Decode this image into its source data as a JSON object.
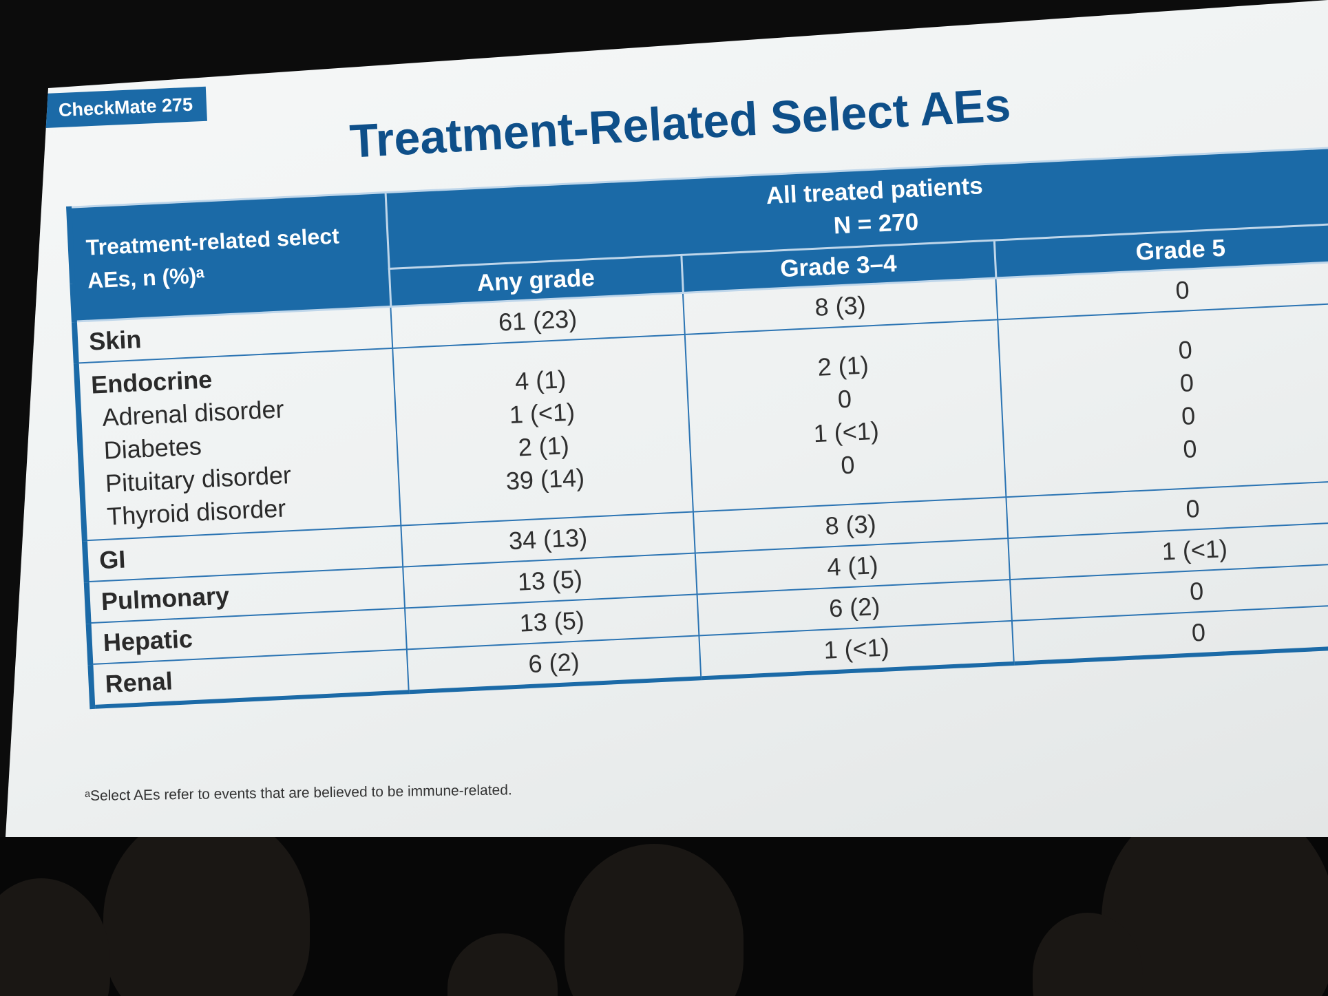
{
  "badge": "CheckMate 275",
  "title": "Treatment-Related Select AEs",
  "table": {
    "corner_header_line1": "Treatment-related select",
    "corner_header_line2": "AEs, n (%)ᵃ",
    "group_header_line1": "All treated patients",
    "group_header_line2": "N = 270",
    "columns": [
      "Any grade",
      "Grade 3–4",
      "Grade 5"
    ],
    "rows": {
      "skin": {
        "label": "Skin",
        "any": "61 (23)",
        "g34": "8 (3)",
        "g5": "0"
      },
      "endocrine": {
        "label": "Endocrine",
        "subs": [
          "Adrenal disorder",
          "Diabetes",
          "Pituitary disorder",
          "Thyroid disorder"
        ],
        "any": [
          "4 (1)",
          "1 (<1)",
          "2 (1)",
          "39 (14)"
        ],
        "g34": [
          "2 (1)",
          "0",
          "1 (<1)",
          "0"
        ],
        "g5": [
          "0",
          "0",
          "0",
          "0"
        ]
      },
      "gi": {
        "label": "GI",
        "any": "34 (13)",
        "g34": "8 (3)",
        "g5": "0"
      },
      "pulmonary": {
        "label": "Pulmonary",
        "any": "13 (5)",
        "g34": "4 (1)",
        "g5": "1 (<1)"
      },
      "hepatic": {
        "label": "Hepatic",
        "any": "13 (5)",
        "g34": "6 (2)",
        "g5": "0"
      },
      "renal": {
        "label": "Renal",
        "any": "6 (2)",
        "g34": "1 (<1)",
        "g5": "0"
      }
    }
  },
  "footnote": "ᵃSelect AEs refer to events that are believed to be immune-related."
}
